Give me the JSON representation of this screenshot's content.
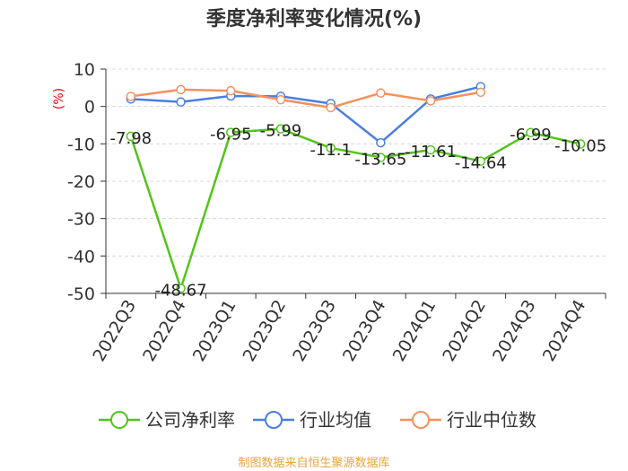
{
  "chart_data": {
    "type": "line",
    "title": "季度净利率变化情况(%)",
    "ylabel": "(%)",
    "xlabel": "",
    "ylim": [
      -50,
      10
    ],
    "yticks": [
      10,
      0,
      -10,
      -20,
      -30,
      -40,
      -50
    ],
    "categories": [
      "2022Q3",
      "2022Q4",
      "2023Q1",
      "2023Q2",
      "2023Q3",
      "2023Q4",
      "2024Q1",
      "2024Q2",
      "2024Q3",
      "2024Q4"
    ],
    "grid": true,
    "legend_position": "bottom",
    "series": [
      {
        "name": "公司净利率",
        "color": "#52c41a",
        "values": [
          -7.98,
          -48.67,
          -6.95,
          -5.99,
          -11.1,
          -13.65,
          -11.61,
          -14.64,
          -6.99,
          -10.05
        ],
        "labels": [
          "-7.98",
          "-48.67",
          "-6.95",
          "-5.99",
          "-11.1",
          "-13.65",
          "-11.61",
          "-14.64",
          "-6.99",
          "-10.05"
        ]
      },
      {
        "name": "行业均值",
        "color": "#4a7fe0",
        "values": [
          2.0,
          1.2,
          2.8,
          2.7,
          0.8,
          -9.7,
          2.0,
          5.3,
          null,
          null
        ]
      },
      {
        "name": "行业中位数",
        "color": "#f4915e",
        "values": [
          2.7,
          4.5,
          4.2,
          1.8,
          -0.3,
          3.6,
          1.5,
          3.8,
          null,
          null
        ]
      }
    ]
  },
  "source": "制图数据来自恒生聚源数据库"
}
